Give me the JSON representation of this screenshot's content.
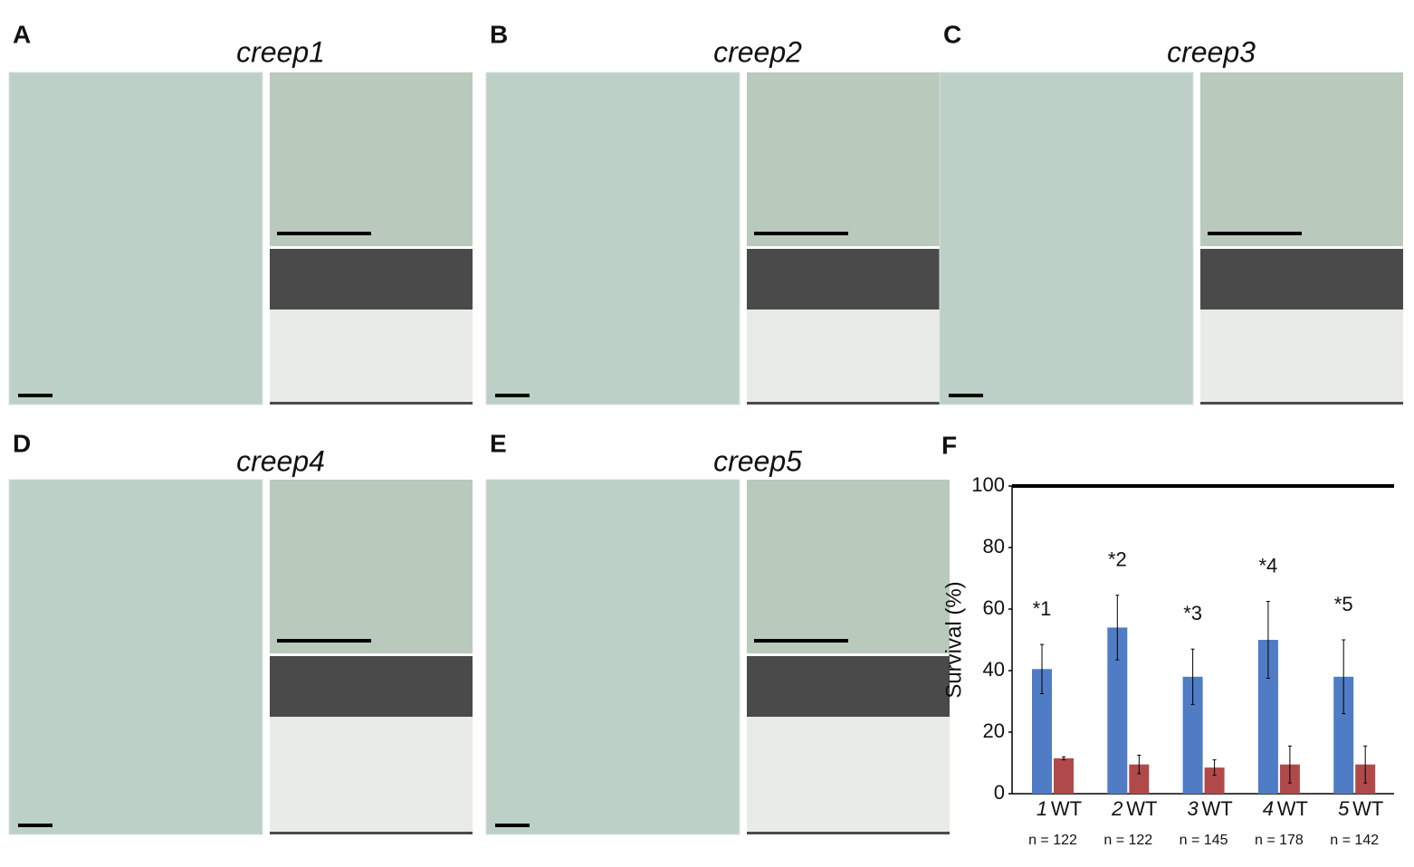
{
  "panels": [
    {
      "label": "A",
      "title": "creep1"
    },
    {
      "label": "B",
      "title": "creep2"
    },
    {
      "label": "C",
      "title": "creep3"
    },
    {
      "label": "D",
      "title": "creep4"
    },
    {
      "label": "E",
      "title": "creep5"
    },
    {
      "label": "F"
    }
  ],
  "chart_data": {
    "type": "bar",
    "y_label": "Survival (%)",
    "categories": [
      "1",
      "2",
      "3",
      "4",
      "5"
    ],
    "series": [
      {
        "color": "#4f7cc4",
        "values": [
          40.5,
          54,
          38,
          50,
          38
        ],
        "errors": [
          8,
          10.5,
          9,
          12.5,
          12
        ]
      },
      {
        "name": "WT",
        "color": "#b04a4a",
        "values": [
          11.5,
          9.5,
          8.5,
          9.5,
          9.5
        ],
        "errors": [
          0.5,
          3,
          2.5,
          6,
          6
        ]
      }
    ],
    "annotations": [
      "*1",
      "*2",
      "*3",
      "*4",
      "*5"
    ],
    "n_labels": [
      "n = 122",
      "n = 122",
      "n = 145",
      "n = 178",
      "n = 142"
    ],
    "ylim": [
      0,
      100
    ],
    "yticks": [
      0,
      20,
      40,
      60,
      80,
      100
    ]
  }
}
